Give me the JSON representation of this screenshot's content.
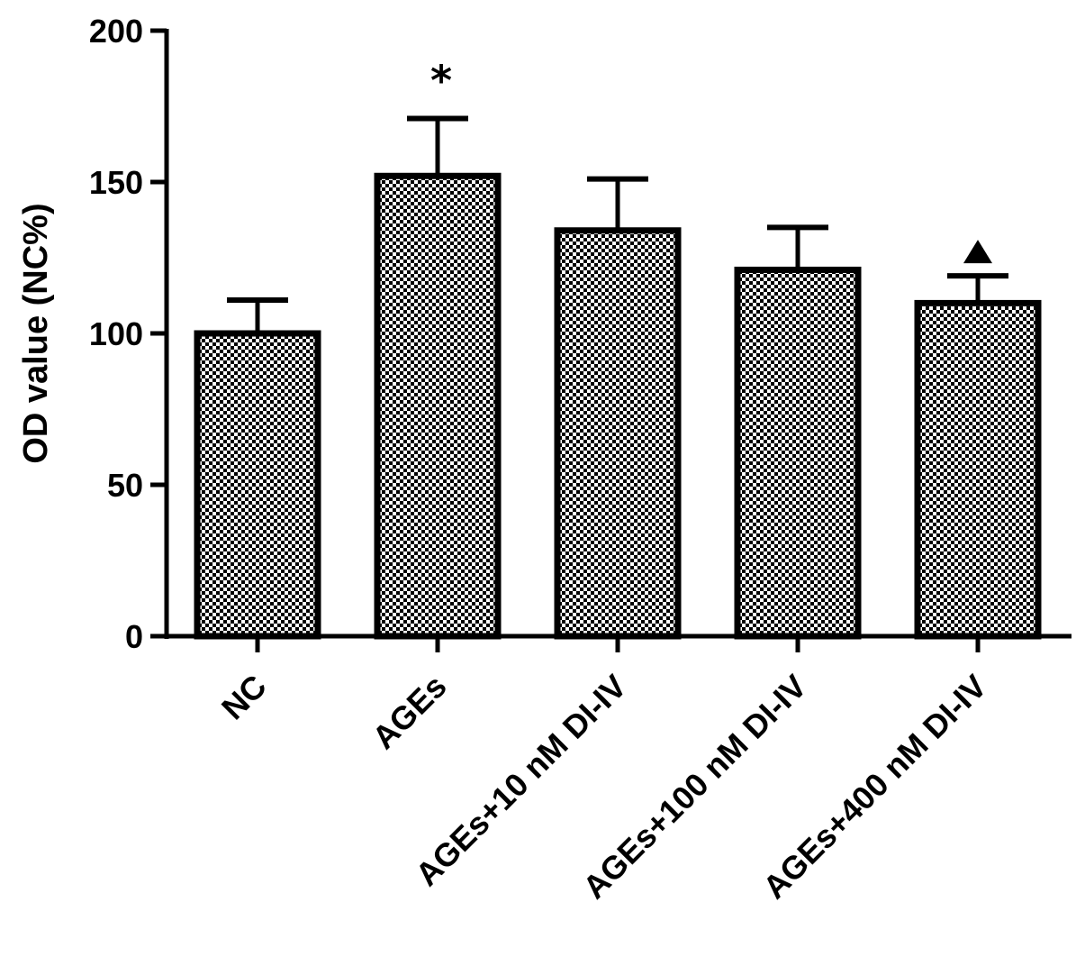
{
  "chart_data": {
    "type": "bar",
    "ylabel": "OD value (NC%)",
    "xlabel": "",
    "ylim": [
      0,
      200
    ],
    "yticks": [
      0,
      50,
      100,
      150,
      200
    ],
    "categories": [
      "NC",
      "AGEs",
      "AGEs+10 nM DI-IV",
      "AGEs+100 nM DI-IV",
      "AGEs+400 nM DI-IV"
    ],
    "values": [
      100,
      152,
      134,
      121,
      110
    ],
    "errors": [
      11,
      19,
      17,
      14,
      9
    ],
    "annotations": [
      {
        "category_index": 1,
        "symbol": "*"
      },
      {
        "category_index": 4,
        "symbol": "▲"
      }
    ],
    "bar_pattern": "checkered",
    "colors": {
      "bar_fill": "#ffffff",
      "pattern": "#000000",
      "stroke": "#000000"
    }
  }
}
